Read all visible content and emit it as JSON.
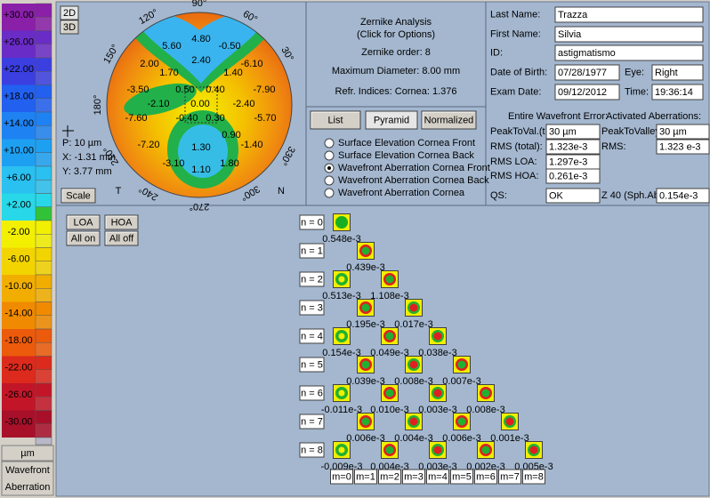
{
  "scale": {
    "labels": [
      "+30.00",
      "+26.00",
      "+22.00",
      "+18.00",
      "+14.00",
      "+10.00",
      "+6.00",
      "+2.00",
      "-2.00",
      "-6.00",
      "-10.00",
      "-14.00",
      "-18.00",
      "-22.00",
      "-26.00",
      "-30.00"
    ],
    "unit": "µm",
    "caption": [
      "Wavefront",
      "Aberration"
    ]
  },
  "map_panel": {
    "view_buttons": [
      "2D",
      "3D"
    ],
    "scale_button": "Scale",
    "angle_labels": [
      "90°",
      "60°",
      "30°",
      "330°",
      "300°",
      "270°",
      "240°",
      "210°",
      "180°",
      "150°",
      "120°"
    ],
    "values": [
      "4.80",
      "5.60",
      "-0.50",
      "2.40",
      "-6.10",
      "2.00",
      "1.70",
      "1.40",
      "-7.90",
      "-3.50",
      "0.50",
      "0.40",
      "-2.10",
      "0.00",
      "-2.40",
      "-7.60",
      "-0.40",
      "0.30",
      "-5.70",
      "-7.20",
      "0.90",
      "1.30",
      "-1.40",
      "-3.10",
      "1.80",
      "1.10"
    ],
    "readout": [
      "P: 10 µm",
      "X: -1.31 mm",
      "Y: 3.77 mm"
    ],
    "temporal": "T",
    "nasal": "N"
  },
  "info": {
    "title": "Zernike Analysis",
    "subtitle": "(Click for Options)",
    "order": "Zernike order: 8",
    "diameter": "Maximum Diameter: 8.00 mm",
    "indices": "Refr. Indices:  Cornea: 1.376"
  },
  "view_tabs": [
    "List",
    "Pyramid",
    "Normalized"
  ],
  "active_tab": 1,
  "surfaces": {
    "options": [
      "Surface Elevation Cornea Front",
      "Surface Elevation Cornea Back",
      "Wavefront Aberration Cornea Front",
      "Wavefront Aberration Cornea Back",
      "Wavefront Aberration Cornea"
    ],
    "selected": 2
  },
  "patient": [
    {
      "label": "Last Name:",
      "value": "Trazza"
    },
    {
      "label": "First Name:",
      "value": "Silvia"
    },
    {
      "label": "ID:",
      "value": "astigmatismo"
    },
    {
      "label": "Date of Birth:",
      "value": "07/28/1977"
    },
    {
      "label": "Eye:",
      "value": "Right"
    },
    {
      "label": "Exam Date:",
      "value": "09/12/2012"
    },
    {
      "label": "Time:",
      "value": "19:36:14"
    }
  ],
  "wavefront": {
    "entire_header": "Entire Wavefront Error:",
    "activated_header": "Activated Aberrations:",
    "entire": [
      {
        "label": "PeakToVal.(t",
        "value": "30 µm"
      },
      {
        "label": "RMS (total):",
        "value": "1.323e-3"
      },
      {
        "label": "RMS LOA:",
        "value": "1.297e-3"
      },
      {
        "label": "RMS HOA:",
        "value": "0.261e-3"
      },
      {
        "label": "QS:",
        "value": "OK"
      }
    ],
    "activated": [
      {
        "label": "PeakToValley",
        "value": "30 µm"
      },
      {
        "label": "RMS:",
        "value": "1.323 e-3"
      },
      {
        "label": "Z 40 (Sph.Ab",
        "value": "0.154e-3"
      }
    ]
  },
  "toggles": [
    "LOA",
    "HOA",
    "All on",
    "All off"
  ],
  "pyramid": {
    "rows": [
      {
        "label": "n = 0",
        "values": [
          "0.548e-3"
        ]
      },
      {
        "label": "n = 1",
        "values": [
          "0.439e-3"
        ]
      },
      {
        "label": "n = 2",
        "values": [
          "0.513e-3",
          "1.108e-3"
        ]
      },
      {
        "label": "n = 3",
        "values": [
          "0.195e-3",
          "0.017e-3"
        ]
      },
      {
        "label": "n = 4",
        "values": [
          "0.154e-3",
          "0.049e-3",
          "0.038e-3"
        ]
      },
      {
        "label": "n = 5",
        "values": [
          "0.039e-3",
          "0.008e-3",
          "0.007e-3"
        ]
      },
      {
        "label": "n = 6",
        "values": [
          "-0.011e-3",
          "0.010e-3",
          "0.003e-3",
          "0.008e-3"
        ]
      },
      {
        "label": "n = 7",
        "values": [
          "0.006e-3",
          "0.004e-3",
          "0.006e-3",
          "0.001e-3"
        ]
      },
      {
        "label": "n = 8",
        "values": [
          "-0.009e-3",
          "0.004e-3",
          "0.003e-3",
          "0.002e-3",
          "0.005e-3"
        ]
      }
    ],
    "columns": [
      "m=0",
      "m=1",
      "m=2",
      "m=3",
      "m=4",
      "m=5",
      "m=6",
      "m=7",
      "m=8"
    ]
  }
}
